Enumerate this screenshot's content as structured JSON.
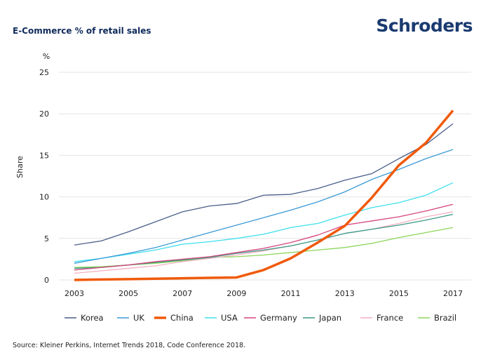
{
  "header": {
    "title": "E-Commerce % of retail sales",
    "logo": "Schroders"
  },
  "footer": {
    "source": "Source: Kleiner Perkins, Internet Trends 2018, Code Conference 2018."
  },
  "chart_data": {
    "type": "line",
    "title": "E-Commerce % of retail sales",
    "ylabel": "Share",
    "yunit": "%",
    "xlabel": "",
    "ylim": [
      0,
      25
    ],
    "yticks": [
      0,
      5,
      10,
      15,
      20,
      25
    ],
    "xticks": [
      2003,
      2005,
      2007,
      2009,
      2011,
      2013,
      2015,
      2017
    ],
    "grid": true,
    "legend": "bottom",
    "x": [
      2003,
      2004,
      2005,
      2006,
      2007,
      2008,
      2009,
      2010,
      2011,
      2012,
      2013,
      2014,
      2015,
      2016,
      2017
    ],
    "series": [
      {
        "name": "Korea",
        "color": "#4a5e8a",
        "values": [
          4.2,
          4.7,
          5.8,
          7.0,
          8.2,
          8.9,
          9.2,
          10.2,
          10.3,
          11.0,
          12.0,
          12.8,
          14.6,
          16.3,
          18.8
        ]
      },
      {
        "name": "UK",
        "color": "#3a9ad6",
        "values": [
          2.0,
          2.6,
          3.2,
          3.9,
          4.8,
          5.7,
          6.6,
          7.5,
          8.4,
          9.4,
          10.6,
          12.1,
          13.3,
          14.6,
          15.7
        ]
      },
      {
        "name": "China",
        "color": "#f05a0a",
        "values": [
          0,
          0.05,
          0.1,
          0.15,
          0.2,
          0.25,
          0.3,
          1.2,
          2.6,
          4.5,
          6.5,
          9.9,
          13.8,
          16.5,
          20.4
        ]
      },
      {
        "name": "USA",
        "color": "#3ee0ee",
        "values": [
          2.2,
          2.6,
          3.1,
          3.6,
          4.3,
          4.6,
          5.0,
          5.5,
          6.3,
          6.8,
          7.8,
          8.7,
          9.3,
          10.2,
          11.7
        ]
      },
      {
        "name": "Germany",
        "color": "#d6457e",
        "values": [
          1.2,
          1.5,
          1.8,
          2.2,
          2.5,
          2.8,
          3.3,
          3.8,
          4.5,
          5.4,
          6.6,
          7.1,
          7.6,
          8.3,
          9.1
        ]
      },
      {
        "name": "Japan",
        "color": "#3a9a86",
        "values": [
          1.4,
          1.5,
          1.8,
          2.1,
          2.4,
          2.7,
          3.2,
          3.6,
          4.1,
          4.8,
          5.6,
          6.1,
          6.6,
          7.2,
          7.9
        ]
      },
      {
        "name": "France",
        "color": "#f4b0c0",
        "values": [
          0.8,
          1.1,
          1.4,
          1.7,
          2.2,
          2.6,
          3.0,
          3.5,
          4.1,
          4.8,
          5.6,
          6.1,
          6.8,
          7.6,
          8.2
        ]
      },
      {
        "name": "Brazil",
        "color": "#8cd65a",
        "values": [
          1.5,
          1.6,
          1.8,
          2.0,
          2.3,
          2.7,
          2.8,
          3.0,
          3.3,
          3.6,
          3.9,
          4.4,
          5.1,
          5.7,
          6.3
        ]
      }
    ]
  }
}
